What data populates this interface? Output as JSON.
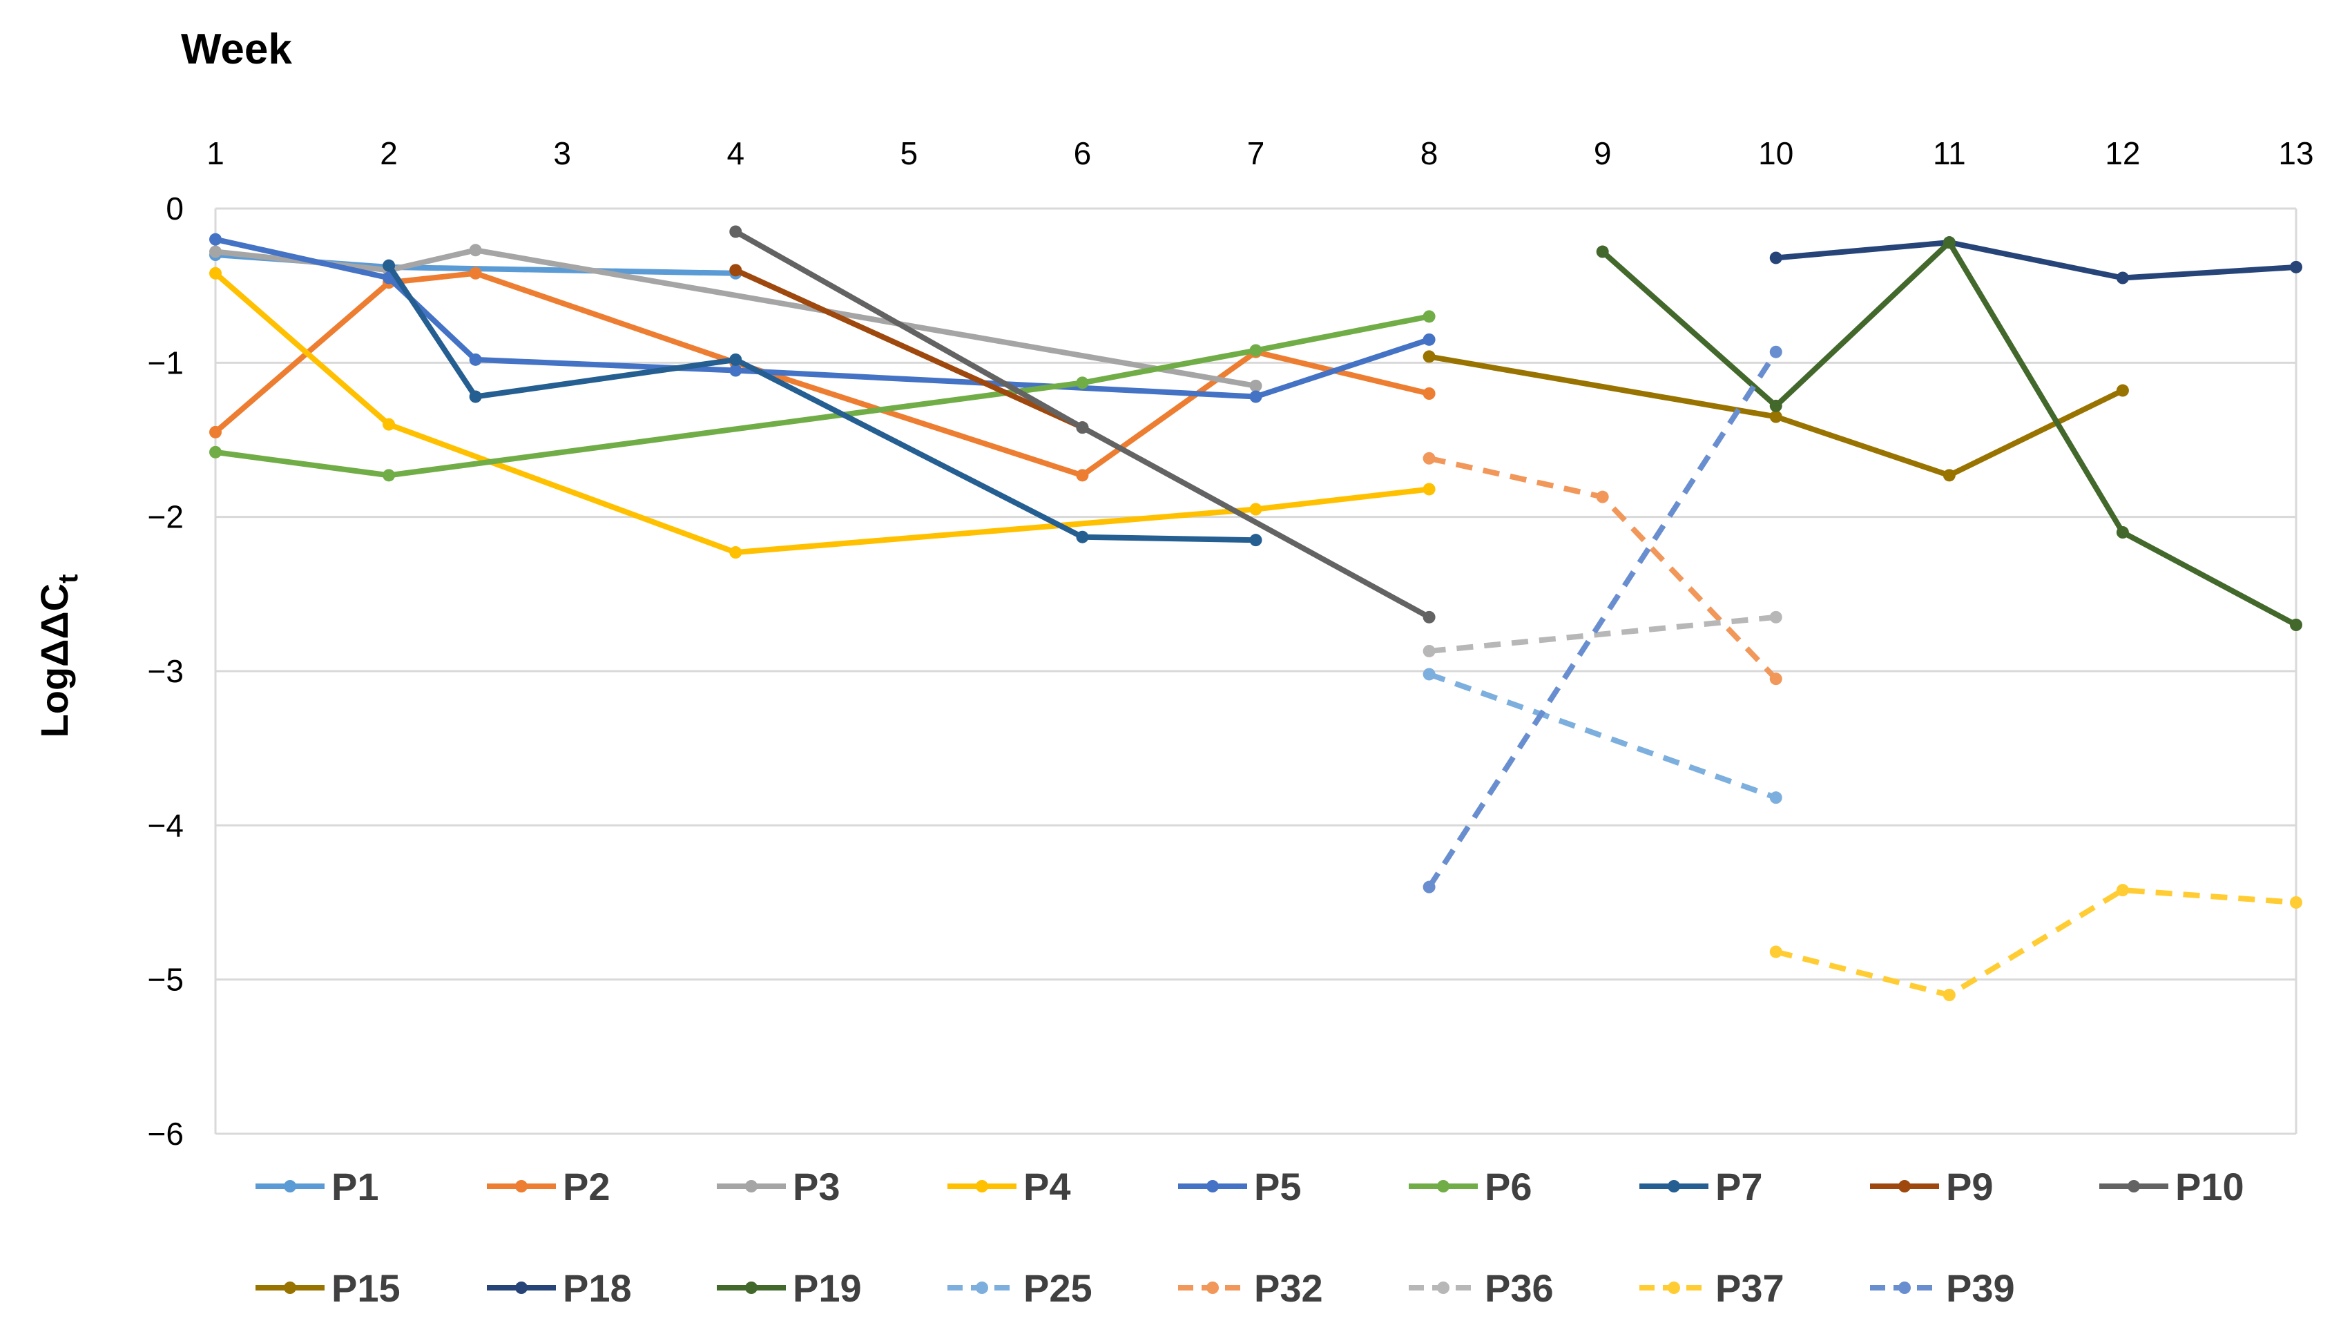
{
  "chart_data": {
    "type": "line",
    "title": "Week",
    "xlabel": "Week",
    "ylabel": "LogΔΔC",
    "ylabel_subscript": "t",
    "xlim": [
      1,
      13
    ],
    "ylim": [
      -6,
      0
    ],
    "x_ticks": [
      "1",
      "2",
      "3",
      "4",
      "5",
      "6",
      "7",
      "8",
      "9",
      "10",
      "11",
      "12",
      "13"
    ],
    "y_ticks": [
      "0",
      "−1",
      "−2",
      "−3",
      "−4",
      "−5",
      "−6"
    ],
    "grid": "horizontal",
    "x_axis_position": "top",
    "legend_position": "bottom",
    "series": [
      {
        "name": "P1",
        "color": "#5B9BD5",
        "dashed": false,
        "x": [
          1,
          2,
          4
        ],
        "y": [
          -0.3,
          -0.38,
          -0.42
        ]
      },
      {
        "name": "P2",
        "color": "#ED7D31",
        "dashed": false,
        "x": [
          1,
          2,
          2.5,
          4,
          6,
          7,
          8
        ],
        "y": [
          -1.45,
          -0.48,
          -0.42,
          -1.0,
          -1.73,
          -0.93,
          -1.2
        ]
      },
      {
        "name": "P3",
        "color": "#A5A5A5",
        "dashed": false,
        "x": [
          1,
          2,
          2.5,
          7
        ],
        "y": [
          -0.28,
          -0.4,
          -0.27,
          -1.15
        ]
      },
      {
        "name": "P4",
        "color": "#FFC000",
        "dashed": false,
        "x": [
          1,
          2,
          4,
          7,
          8
        ],
        "y": [
          -0.42,
          -1.4,
          -2.23,
          -1.95,
          -1.82
        ]
      },
      {
        "name": "P5",
        "color": "#4472C4",
        "dashed": false,
        "x": [
          1,
          2,
          2.5,
          4,
          7,
          8
        ],
        "y": [
          -0.2,
          -0.45,
          -0.98,
          -1.05,
          -1.22,
          -0.85
        ]
      },
      {
        "name": "P6",
        "color": "#70AD47",
        "dashed": false,
        "x": [
          1,
          2,
          6,
          7,
          8
        ],
        "y": [
          -1.58,
          -1.73,
          -1.13,
          -0.92,
          -0.7
        ]
      },
      {
        "name": "P7",
        "color": "#255E91",
        "dashed": false,
        "x": [
          2,
          2.5,
          4,
          6,
          7
        ],
        "y": [
          -0.37,
          -1.22,
          -0.98,
          -2.13,
          -2.15
        ]
      },
      {
        "name": "P9",
        "color": "#9E480E",
        "dashed": false,
        "x": [
          4,
          6
        ],
        "y": [
          -0.4,
          -1.42
        ]
      },
      {
        "name": "P10",
        "color": "#636363",
        "dashed": false,
        "x": [
          4,
          6,
          8
        ],
        "y": [
          -0.15,
          -1.42,
          -2.65
        ]
      },
      {
        "name": "P15",
        "color": "#997300",
        "dashed": false,
        "x": [
          8,
          10,
          11,
          12
        ],
        "y": [
          -0.96,
          -1.35,
          -1.73,
          -1.18
        ]
      },
      {
        "name": "P18",
        "color": "#264478",
        "dashed": false,
        "x": [
          10,
          11,
          12,
          13
        ],
        "y": [
          -0.32,
          -0.22,
          -0.45,
          -0.38
        ]
      },
      {
        "name": "P19",
        "color": "#43682B",
        "dashed": false,
        "x": [
          9,
          10,
          11,
          12,
          13
        ],
        "y": [
          -0.28,
          -1.28,
          -0.22,
          -2.1,
          -2.7
        ]
      },
      {
        "name": "P25",
        "color": "#7CAFDD",
        "dashed": true,
        "x": [
          8,
          10
        ],
        "y": [
          -3.02,
          -3.82
        ]
      },
      {
        "name": "P32",
        "color": "#F1975A",
        "dashed": true,
        "x": [
          8,
          9,
          10
        ],
        "y": [
          -1.62,
          -1.87,
          -3.05
        ]
      },
      {
        "name": "P36",
        "color": "#B7B7B7",
        "dashed": true,
        "x": [
          8,
          10
        ],
        "y": [
          -2.87,
          -2.65
        ]
      },
      {
        "name": "P37",
        "color": "#FFCD33",
        "dashed": true,
        "x": [
          10,
          11,
          12,
          13
        ],
        "y": [
          -4.82,
          -5.1,
          -4.42,
          -4.5
        ]
      },
      {
        "name": "P39",
        "color": "#698ED0",
        "dashed": true,
        "x": [
          8,
          10
        ],
        "y": [
          -4.4,
          -0.93
        ]
      }
    ]
  }
}
